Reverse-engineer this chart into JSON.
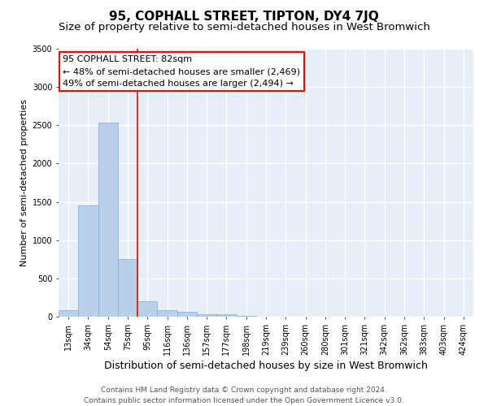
{
  "title": "95, COPHALL STREET, TIPTON, DY4 7JQ",
  "subtitle": "Size of property relative to semi-detached houses in West Bromwich",
  "xlabel": "Distribution of semi-detached houses by size in West Bromwich",
  "ylabel": "Number of semi-detached properties",
  "categories": [
    "13sqm",
    "34sqm",
    "54sqm",
    "75sqm",
    "95sqm",
    "116sqm",
    "136sqm",
    "157sqm",
    "177sqm",
    "198sqm",
    "219sqm",
    "239sqm",
    "260sqm",
    "280sqm",
    "301sqm",
    "321sqm",
    "342sqm",
    "362sqm",
    "383sqm",
    "403sqm",
    "424sqm"
  ],
  "values": [
    80,
    1450,
    2530,
    750,
    200,
    90,
    60,
    35,
    30,
    8,
    5,
    3,
    2,
    0,
    0,
    0,
    0,
    0,
    0,
    0,
    0
  ],
  "bar_color": "#b8d0ea",
  "bar_edge_color": "#7aadd4",
  "vline_position": 4,
  "annotation_title": "95 COPHALL STREET: 82sqm",
  "annotation_line2": "← 48% of semi-detached houses are smaller (2,469)",
  "annotation_line3": "49% of semi-detached houses are larger (2,494) →",
  "annotation_box_facecolor": "white",
  "annotation_box_edgecolor": "red",
  "vline_color": "red",
  "ylim": [
    0,
    3500
  ],
  "yticks": [
    0,
    500,
    1000,
    1500,
    2000,
    2500,
    3000,
    3500
  ],
  "bg_color": "#e8eef8",
  "grid_color": "white",
  "footer_line1": "Contains HM Land Registry data © Crown copyright and database right 2024.",
  "footer_line2": "Contains public sector information licensed under the Open Government Licence v3.0.",
  "title_fontsize": 11,
  "subtitle_fontsize": 9.5,
  "ylabel_fontsize": 8,
  "xlabel_fontsize": 9,
  "tick_fontsize": 7,
  "annotation_fontsize": 8,
  "footer_fontsize": 6.5
}
